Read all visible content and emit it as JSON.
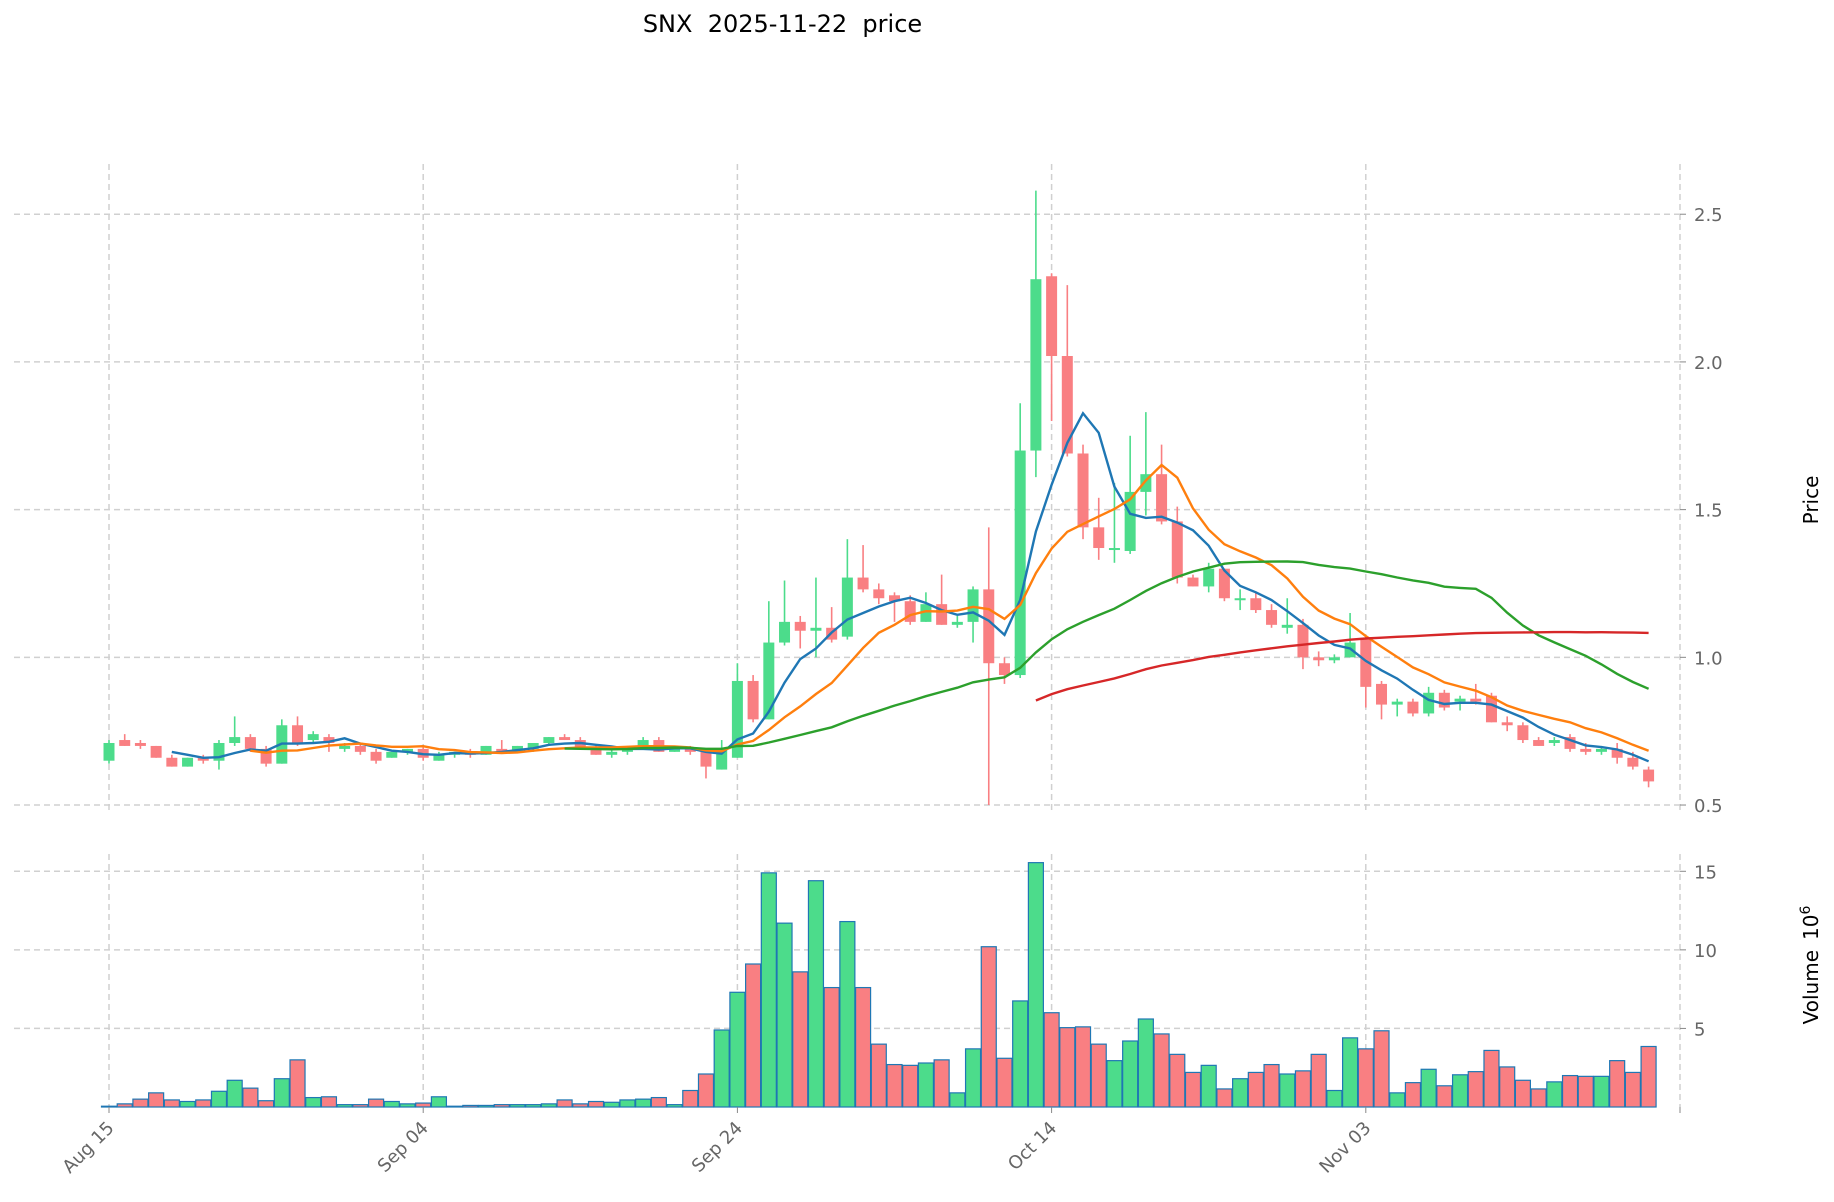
{
  "chart_data": {
    "type": "candlestick",
    "title": "SNX  2025-11-22  price",
    "price_axis": {
      "label": "Price",
      "ylim": [
        0.473,
        2.67
      ],
      "ticks": [
        0.5,
        1.0,
        1.5,
        2.0,
        2.5
      ],
      "tick_labels": [
        "0.5",
        "1.0",
        "1.5",
        "2.0",
        "2.5"
      ]
    },
    "volume_axis": {
      "label": "Volume",
      "exponent_label": "10",
      "exponent": "6",
      "ylim": [
        0,
        16.1
      ],
      "ticks": [
        5,
        10,
        15
      ],
      "tick_labels": [
        "5",
        "10",
        "15"
      ]
    },
    "x_ticks": [
      {
        "index": 0,
        "label": "Aug 15"
      },
      {
        "index": 20,
        "label": "Sep 04"
      },
      {
        "index": 40,
        "label": "Sep 24"
      },
      {
        "index": 60,
        "label": "Oct 14"
      },
      {
        "index": 80,
        "label": "Nov 03"
      },
      {
        "index": 100,
        "label": ""
      }
    ],
    "grid": true,
    "colors": {
      "up": "#4cdc8b",
      "down": "#f97f82",
      "volume_edge": "#1f77b4",
      "ma5": "#1f77b4",
      "ma10": "#ff7f0e",
      "ma30": "#2ca02c",
      "ma60": "#d62728"
    },
    "moving_averages": [
      5,
      10,
      30,
      60
    ],
    "ohlc": [
      [
        0.65,
        0.72,
        0.64,
        0.71
      ],
      [
        0.72,
        0.74,
        0.7,
        0.7
      ],
      [
        0.71,
        0.72,
        0.69,
        0.7
      ],
      [
        0.7,
        0.7,
        0.66,
        0.66
      ],
      [
        0.66,
        0.67,
        0.63,
        0.63
      ],
      [
        0.63,
        0.66,
        0.63,
        0.66
      ],
      [
        0.66,
        0.67,
        0.64,
        0.65
      ],
      [
        0.65,
        0.72,
        0.62,
        0.71
      ],
      [
        0.71,
        0.8,
        0.7,
        0.73
      ],
      [
        0.73,
        0.74,
        0.68,
        0.69
      ],
      [
        0.69,
        0.7,
        0.63,
        0.64
      ],
      [
        0.64,
        0.79,
        0.64,
        0.77
      ],
      [
        0.77,
        0.8,
        0.7,
        0.71
      ],
      [
        0.72,
        0.75,
        0.71,
        0.74
      ],
      [
        0.73,
        0.74,
        0.68,
        0.71
      ],
      [
        0.69,
        0.71,
        0.68,
        0.7
      ],
      [
        0.7,
        0.71,
        0.67,
        0.68
      ],
      [
        0.68,
        0.69,
        0.64,
        0.65
      ],
      [
        0.66,
        0.68,
        0.66,
        0.68
      ],
      [
        0.68,
        0.69,
        0.67,
        0.69
      ],
      [
        0.69,
        0.7,
        0.65,
        0.66
      ],
      [
        0.65,
        0.68,
        0.65,
        0.67
      ],
      [
        0.67,
        0.68,
        0.66,
        0.68
      ],
      [
        0.68,
        0.69,
        0.66,
        0.67
      ],
      [
        0.67,
        0.7,
        0.67,
        0.7
      ],
      [
        0.69,
        0.72,
        0.68,
        0.68
      ],
      [
        0.68,
        0.7,
        0.68,
        0.7
      ],
      [
        0.69,
        0.71,
        0.68,
        0.71
      ],
      [
        0.71,
        0.73,
        0.7,
        0.73
      ],
      [
        0.73,
        0.74,
        0.72,
        0.72
      ],
      [
        0.72,
        0.73,
        0.69,
        0.69
      ],
      [
        0.69,
        0.7,
        0.67,
        0.67
      ],
      [
        0.67,
        0.69,
        0.66,
        0.68
      ],
      [
        0.68,
        0.7,
        0.67,
        0.69
      ],
      [
        0.69,
        0.73,
        0.69,
        0.72
      ],
      [
        0.72,
        0.73,
        0.68,
        0.68
      ],
      [
        0.68,
        0.7,
        0.68,
        0.69
      ],
      [
        0.69,
        0.7,
        0.67,
        0.68
      ],
      [
        0.68,
        0.69,
        0.59,
        0.63
      ],
      [
        0.62,
        0.72,
        0.62,
        0.69
      ],
      [
        0.66,
        0.98,
        0.66,
        0.92
      ],
      [
        0.92,
        0.94,
        0.78,
        0.79
      ],
      [
        0.79,
        1.19,
        0.79,
        1.05
      ],
      [
        1.05,
        1.26,
        1.04,
        1.12
      ],
      [
        1.12,
        1.14,
        1.03,
        1.09
      ],
      [
        1.09,
        1.27,
        1.0,
        1.1
      ],
      [
        1.1,
        1.17,
        1.05,
        1.06
      ],
      [
        1.07,
        1.4,
        1.06,
        1.27
      ],
      [
        1.27,
        1.38,
        1.22,
        1.23
      ],
      [
        1.23,
        1.25,
        1.18,
        1.2
      ],
      [
        1.21,
        1.22,
        1.12,
        1.19
      ],
      [
        1.19,
        1.21,
        1.11,
        1.12
      ],
      [
        1.12,
        1.22,
        1.12,
        1.18
      ],
      [
        1.18,
        1.28,
        1.11,
        1.11
      ],
      [
        1.11,
        1.14,
        1.1,
        1.12
      ],
      [
        1.12,
        1.24,
        1.05,
        1.23
      ],
      [
        1.23,
        1.44,
        0.5,
        0.98
      ],
      [
        0.98,
        1.0,
        0.91,
        0.94
      ],
      [
        0.94,
        1.86,
        0.93,
        1.7
      ],
      [
        1.7,
        2.58,
        1.61,
        2.28
      ],
      [
        2.29,
        2.3,
        1.8,
        2.02
      ],
      [
        2.02,
        2.26,
        1.68,
        1.69
      ],
      [
        1.69,
        1.72,
        1.4,
        1.44
      ],
      [
        1.44,
        1.54,
        1.33,
        1.37
      ],
      [
        1.37,
        1.59,
        1.32,
        1.37
      ],
      [
        1.36,
        1.75,
        1.35,
        1.56
      ],
      [
        1.56,
        1.83,
        1.48,
        1.62
      ],
      [
        1.62,
        1.72,
        1.45,
        1.46
      ],
      [
        1.46,
        1.51,
        1.25,
        1.27
      ],
      [
        1.27,
        1.28,
        1.24,
        1.24
      ],
      [
        1.24,
        1.32,
        1.22,
        1.3
      ],
      [
        1.3,
        1.3,
        1.19,
        1.2
      ],
      [
        1.2,
        1.23,
        1.16,
        1.2
      ],
      [
        1.2,
        1.22,
        1.15,
        1.16
      ],
      [
        1.16,
        1.18,
        1.1,
        1.11
      ],
      [
        1.1,
        1.2,
        1.08,
        1.11
      ],
      [
        1.11,
        1.13,
        0.96,
        1.0
      ],
      [
        1.0,
        1.02,
        0.97,
        0.99
      ],
      [
        0.99,
        1.01,
        0.98,
        1.0
      ],
      [
        1.0,
        1.15,
        1.0,
        1.05
      ],
      [
        1.06,
        1.07,
        0.83,
        0.9
      ],
      [
        0.91,
        0.92,
        0.79,
        0.84
      ],
      [
        0.84,
        0.86,
        0.8,
        0.85
      ],
      [
        0.85,
        0.86,
        0.8,
        0.81
      ],
      [
        0.81,
        0.9,
        0.8,
        0.88
      ],
      [
        0.88,
        0.89,
        0.82,
        0.83
      ],
      [
        0.85,
        0.87,
        0.82,
        0.86
      ],
      [
        0.86,
        0.91,
        0.84,
        0.85
      ],
      [
        0.87,
        0.88,
        0.78,
        0.78
      ],
      [
        0.78,
        0.8,
        0.75,
        0.77
      ],
      [
        0.77,
        0.78,
        0.71,
        0.72
      ],
      [
        0.72,
        0.73,
        0.7,
        0.7
      ],
      [
        0.71,
        0.73,
        0.7,
        0.72
      ],
      [
        0.73,
        0.74,
        0.68,
        0.69
      ],
      [
        0.69,
        0.71,
        0.67,
        0.68
      ],
      [
        0.68,
        0.7,
        0.67,
        0.69
      ],
      [
        0.69,
        0.71,
        0.64,
        0.66
      ],
      [
        0.66,
        0.68,
        0.62,
        0.63
      ],
      [
        0.62,
        0.63,
        0.56,
        0.58
      ]
    ],
    "volume": [
      0.05,
      0.2,
      0.5,
      0.9,
      0.45,
      0.35,
      0.45,
      1.0,
      1.7,
      1.2,
      0.4,
      1.8,
      3.0,
      0.6,
      0.65,
      0.15,
      0.15,
      0.5,
      0.35,
      0.2,
      0.25,
      0.65,
      0.05,
      0.1,
      0.1,
      0.15,
      0.15,
      0.15,
      0.2,
      0.45,
      0.2,
      0.35,
      0.3,
      0.45,
      0.5,
      0.6,
      0.15,
      1.05,
      2.1,
      4.9,
      7.3,
      9.1,
      14.9,
      11.7,
      8.6,
      14.4,
      7.6,
      11.8,
      7.6,
      4.0,
      2.7,
      2.65,
      2.8,
      3.0,
      0.9,
      3.7,
      10.2,
      3.1,
      6.75,
      15.55,
      6.0,
      5.05,
      5.1,
      4.0,
      2.95,
      4.2,
      5.6,
      4.65,
      3.35,
      2.2,
      2.65,
      1.15,
      1.8,
      2.2,
      2.7,
      2.1,
      2.3,
      3.35,
      1.05,
      4.4,
      3.7,
      4.85,
      0.9,
      1.55,
      2.4,
      1.35,
      2.05,
      2.25,
      3.6,
      2.55,
      1.7,
      1.15,
      1.6,
      2.0,
      1.95,
      1.95,
      2.95,
      2.2,
      3.85
    ]
  }
}
